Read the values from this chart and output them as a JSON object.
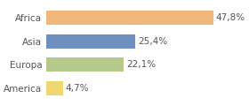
{
  "categories": [
    "America",
    "Europa",
    "Asia",
    "Africa"
  ],
  "values": [
    4.7,
    22.1,
    25.4,
    47.8
  ],
  "labels": [
    "4,7%",
    "22,1%",
    "25,4%",
    "47,8%"
  ],
  "bar_colors": [
    "#f0d870",
    "#b5c98a",
    "#6e8fc0",
    "#f0b87a"
  ],
  "background_color": "#ffffff",
  "xlim": [
    0,
    55
  ],
  "bar_height": 0.6,
  "label_fontsize": 7.5,
  "tick_fontsize": 7.5
}
